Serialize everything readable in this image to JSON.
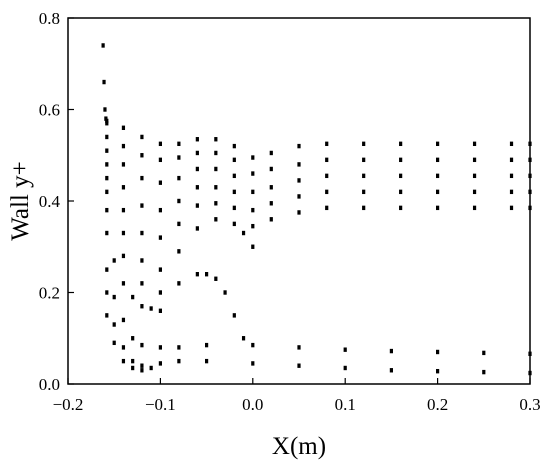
{
  "chart_data": {
    "type": "scatter",
    "title": "",
    "xlabel": "X(m)",
    "ylabel": "Wall y+",
    "xlim": [
      -0.2,
      0.3
    ],
    "ylim": [
      0.0,
      0.8
    ],
    "xticks": [
      -0.2,
      -0.1,
      0.0,
      0.1,
      0.2,
      0.3
    ],
    "xtick_labels": [
      "−0.2",
      "−0.1",
      "0.0",
      "0.1",
      "0.2",
      "0.3"
    ],
    "yticks": [
      0.0,
      0.2,
      0.4,
      0.6,
      0.8
    ],
    "ytick_labels": [
      "0.0",
      "0.2",
      "0.4",
      "0.6",
      "0.8"
    ],
    "grid": false,
    "legend": "none",
    "marker_color": "#000000",
    "series": [
      {
        "x": [
          -0.162,
          -0.161,
          -0.16,
          -0.159,
          -0.158
        ],
        "y": [
          0.74,
          0.66,
          0.6,
          0.58,
          0.575
        ]
      },
      {
        "x": [
          -0.158,
          -0.14,
          -0.12,
          -0.1,
          -0.08,
          -0.06,
          -0.04,
          -0.02,
          0.0,
          0.02,
          0.05,
          0.08,
          0.12,
          0.16,
          0.2,
          0.24,
          0.28,
          0.3
        ],
        "y": [
          0.57,
          0.56,
          0.54,
          0.525,
          0.525,
          0.535,
          0.535,
          0.52,
          0.495,
          0.505,
          0.52,
          0.525,
          0.525,
          0.525,
          0.525,
          0.525,
          0.525,
          0.525
        ]
      },
      {
        "x": [
          -0.158,
          -0.14,
          -0.12,
          -0.1,
          -0.08,
          -0.06,
          -0.04,
          -0.02,
          0.0,
          0.02,
          0.05,
          0.08,
          0.12,
          0.16,
          0.2,
          0.24,
          0.28,
          0.3
        ],
        "y": [
          0.54,
          0.52,
          0.5,
          0.49,
          0.495,
          0.505,
          0.505,
          0.49,
          0.46,
          0.47,
          0.48,
          0.49,
          0.49,
          0.49,
          0.49,
          0.49,
          0.49,
          0.49
        ]
      },
      {
        "x": [
          -0.158,
          -0.14,
          -0.12,
          -0.1,
          -0.08,
          -0.06,
          -0.04,
          -0.02,
          0.0,
          0.02,
          0.05,
          0.08,
          0.12,
          0.16,
          0.2,
          0.24,
          0.28,
          0.3
        ],
        "y": [
          0.51,
          0.48,
          0.45,
          0.44,
          0.45,
          0.47,
          0.47,
          0.455,
          0.42,
          0.43,
          0.445,
          0.455,
          0.455,
          0.455,
          0.455,
          0.455,
          0.455,
          0.455
        ]
      },
      {
        "x": [
          -0.158,
          -0.14,
          -0.12,
          -0.1,
          -0.08,
          -0.06,
          -0.04,
          -0.02,
          0.0,
          0.02,
          0.05,
          0.08,
          0.12,
          0.16,
          0.2,
          0.24,
          0.28,
          0.3
        ],
        "y": [
          0.48,
          0.43,
          0.39,
          0.38,
          0.4,
          0.43,
          0.43,
          0.42,
          0.38,
          0.395,
          0.41,
          0.42,
          0.42,
          0.42,
          0.42,
          0.42,
          0.42,
          0.42
        ]
      },
      {
        "x": [
          -0.158,
          -0.14,
          -0.12,
          -0.1,
          -0.08,
          -0.06,
          -0.04,
          -0.02,
          0.0,
          0.02,
          0.05,
          0.08,
          0.12,
          0.16,
          0.2,
          0.24,
          0.28,
          0.3
        ],
        "y": [
          0.45,
          0.38,
          0.33,
          0.32,
          0.35,
          0.39,
          0.395,
          0.385,
          0.345,
          0.36,
          0.375,
          0.385,
          0.385,
          0.385,
          0.385,
          0.385,
          0.385,
          0.385
        ]
      },
      {
        "x": [
          -0.158,
          -0.14,
          -0.12,
          -0.1,
          -0.08,
          -0.06,
          -0.04,
          -0.02,
          -0.01,
          0.0
        ],
        "y": [
          0.42,
          0.33,
          0.27,
          0.25,
          0.29,
          0.34,
          0.36,
          0.35,
          0.33,
          0.3
        ]
      },
      {
        "x": [
          -0.158,
          -0.14,
          -0.12,
          -0.1,
          -0.08,
          -0.06,
          -0.05,
          -0.04,
          -0.03,
          -0.02,
          -0.01
        ],
        "y": [
          0.38,
          0.28,
          0.22,
          0.2,
          0.22,
          0.24,
          0.24,
          0.23,
          0.2,
          0.15,
          0.1
        ]
      },
      {
        "x": [
          -0.158,
          -0.15,
          -0.14,
          -0.13,
          -0.12,
          -0.11,
          -0.1
        ],
        "y": [
          0.33,
          0.27,
          0.22,
          0.19,
          0.17,
          0.165,
          0.16
        ]
      },
      {
        "x": [
          -0.158,
          -0.15,
          -0.14,
          -0.13,
          -0.12,
          -0.1,
          -0.08,
          -0.05,
          0.0,
          0.05,
          0.1,
          0.15,
          0.2,
          0.25,
          0.3
        ],
        "y": [
          0.25,
          0.19,
          0.14,
          0.1,
          0.085,
          0.08,
          0.08,
          0.085,
          0.085,
          0.08,
          0.075,
          0.072,
          0.07,
          0.068,
          0.066
        ]
      },
      {
        "x": [
          -0.158,
          -0.15,
          -0.14,
          -0.13,
          -0.12,
          -0.1,
          -0.08,
          -0.05,
          0.0,
          0.05,
          0.1,
          0.15,
          0.2,
          0.25,
          0.3
        ],
        "y": [
          0.2,
          0.13,
          0.08,
          0.05,
          0.04,
          0.045,
          0.05,
          0.05,
          0.045,
          0.04,
          0.035,
          0.03,
          0.028,
          0.026,
          0.024
        ]
      },
      {
        "x": [
          -0.158,
          -0.15,
          -0.14,
          -0.13,
          -0.12,
          -0.11
        ],
        "y": [
          0.15,
          0.09,
          0.05,
          0.035,
          0.03,
          0.035
        ]
      }
    ]
  }
}
